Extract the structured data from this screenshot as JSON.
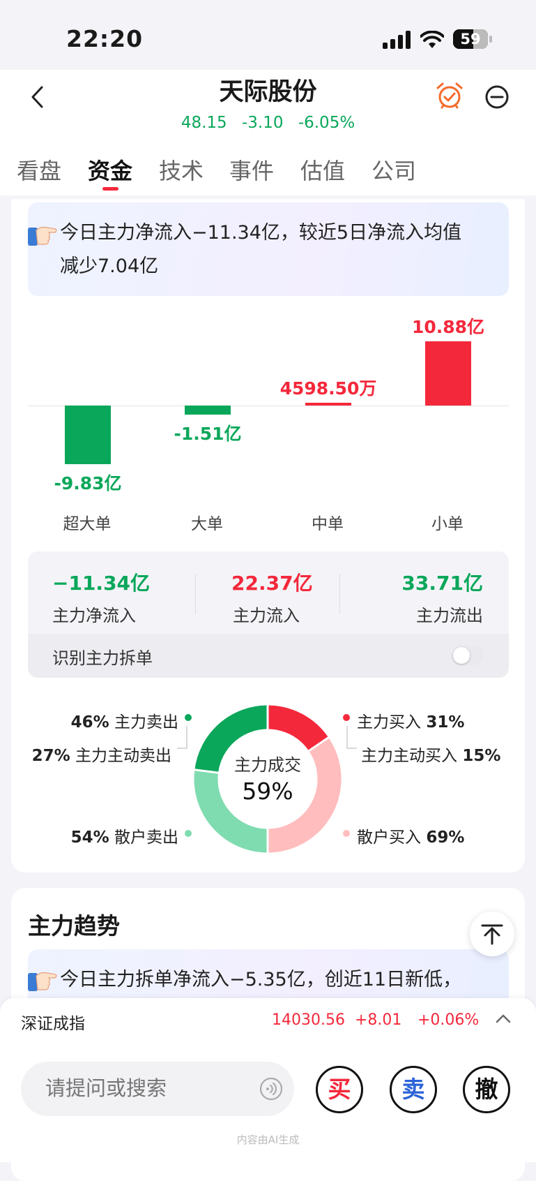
{
  "status_bar": {
    "time": "22:20",
    "battery": "59"
  },
  "header": {
    "title": "天际股份",
    "price": "48.15",
    "change": "-3.10",
    "change_pct": "-6.05%"
  },
  "tabs": [
    "看盘",
    "资金",
    "技术",
    "事件",
    "估值",
    "公司"
  ],
  "active_tab": 1,
  "banner1": {
    "line1": "今日主力净流入−11.34亿，较近5日净流入均值",
    "line2": "减少7.04亿"
  },
  "chart_data": {
    "type": "bar",
    "categories": [
      "超大单",
      "大单",
      "中单",
      "小单"
    ],
    "values": [
      -9.83,
      -1.51,
      0.45985,
      10.88
    ],
    "unit": "亿",
    "labels": [
      "-9.83亿",
      "-1.51亿",
      "4598.50万",
      "10.88亿"
    ],
    "colors": {
      "positive": "#f4283b",
      "negative": "#0aa75a"
    }
  },
  "summary": {
    "net": {
      "value": "−11.34亿",
      "label": "主力净流入"
    },
    "inflow": {
      "value": "22.37亿",
      "label": "主力流入"
    },
    "outflow": {
      "value": "33.71亿",
      "label": "主力流出"
    },
    "split_label": "识别主力拆单",
    "split_enabled": false
  },
  "donut": {
    "center_label": "主力成交",
    "center_value": "59%",
    "main_sell": {
      "pct": "46%",
      "label": "主力卖出"
    },
    "main_active_sell": {
      "pct": "27%",
      "label": "主力主动卖出"
    },
    "retail_sell": {
      "pct": "54%",
      "label": "散户卖出"
    },
    "main_buy": {
      "label": "主力买入",
      "pct": "31%"
    },
    "main_active_buy": {
      "label": "主力主动买入",
      "pct": "15%"
    },
    "retail_buy": {
      "label": "散户买入",
      "pct": "69%"
    },
    "colors": {
      "main_buy": "#f4283b",
      "retail_buy": "#ffbdbd",
      "main_sell": "#0aa75a",
      "retail_sell": "#7fdcb0"
    }
  },
  "trend": {
    "title": "主力趋势",
    "banner": "今日主力拆单净流入−5.35亿，创近11日新低，"
  },
  "index_bar": {
    "name": "深证成指",
    "value": "14030.56",
    "change": "+8.01",
    "change_pct": "+0.06%"
  },
  "bottom": {
    "search_placeholder": "请提问或搜索",
    "buy": "买",
    "sell": "卖",
    "cancel": "撤",
    "ai_note": "内容由AI生成"
  }
}
